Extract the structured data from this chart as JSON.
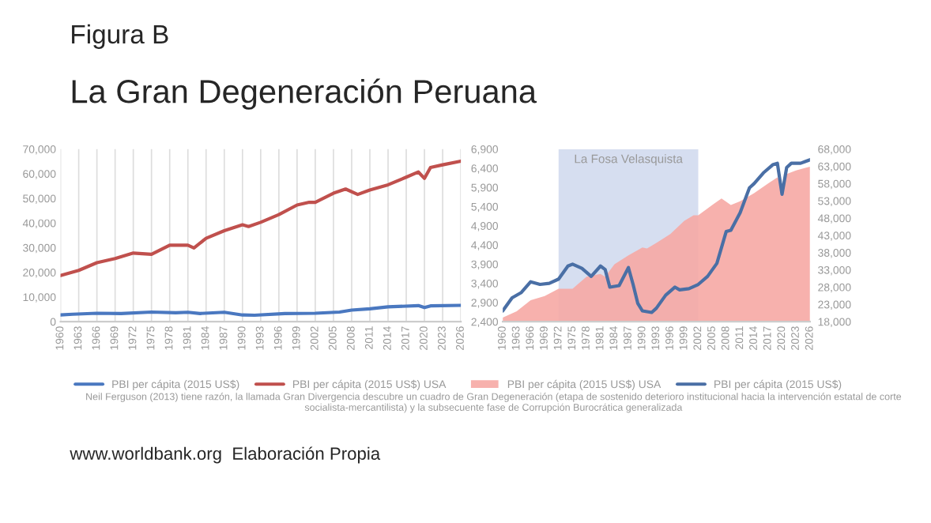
{
  "chart_data": [
    {
      "type": "line",
      "title": "Figura B",
      "subtitle": "La Gran Degeneración Peruana",
      "annotations": [
        "Neil Ferguson (2013) tiene razón, la llamada Gran Divergencia descubre un cuadro de Gran Degeneración (etapa de sostenido deterioro institucional hacia la intervención estatal de corte socialista-mercantilista) y la subsecuente fase de Corrupción Burocrática generalizada",
        "www.worldbank.org  Elaboración Propia"
      ],
      "xlim": [
        1960,
        2026
      ],
      "xticks": [
        1960,
        1963,
        1966,
        1969,
        1972,
        1975,
        1978,
        1981,
        1984,
        1987,
        1990,
        1993,
        1996,
        1999,
        2002,
        2005,
        2008,
        2011,
        2014,
        2017,
        2020,
        2023,
        2026
      ],
      "ylim": [
        0,
        70000
      ],
      "yticks": [
        {
          "value": 0,
          "label": "0"
        },
        {
          "value": 10000,
          "label": "10,000"
        },
        {
          "value": 20000,
          "label": "20,000"
        },
        {
          "value": 30000,
          "label": "30,000"
        },
        {
          "value": 40000,
          "label": "40,000"
        },
        {
          "value": 50000,
          "label": "50,000"
        },
        {
          "value": 60000,
          "label": "60,000"
        },
        {
          "value": 70000,
          "label": "70,000"
        }
      ],
      "grid": "x",
      "legend": "bottom",
      "series": [
        {
          "name": "PBI per cápita (2015 US$)",
          "color": "#4a78c0",
          "x": [
            1960,
            1962,
            1966,
            1970,
            1975,
            1979,
            1981,
            1983,
            1987,
            1990,
            1992,
            1997,
            2002,
            2006,
            2008,
            2011,
            2014,
            2019,
            2020,
            2021,
            2026
          ],
          "values": [
            2700,
            3000,
            3400,
            3300,
            3900,
            3600,
            3800,
            3300,
            3800,
            2700,
            2600,
            3300,
            3400,
            3900,
            4700,
            5200,
            6000,
            6500,
            5700,
            6400,
            6600
          ]
        },
        {
          "name": "PBI per cápita (2015 US$) USA",
          "color": "#c0504d",
          "x": [
            1960,
            1963,
            1966,
            1969,
            1972,
            1975,
            1978,
            1981,
            1982,
            1984,
            1987,
            1990,
            1991,
            1993,
            1996,
            1999,
            2001,
            2002,
            2005,
            2007,
            2009,
            2011,
            2014,
            2017,
            2019,
            2020,
            2021,
            2023,
            2026
          ],
          "values": [
            18700,
            20800,
            23900,
            25600,
            27800,
            27300,
            31000,
            31000,
            29900,
            33800,
            36900,
            39300,
            38600,
            40300,
            43400,
            47300,
            48400,
            48400,
            52100,
            53800,
            51600,
            53400,
            55500,
            58600,
            60700,
            58100,
            62500,
            63600,
            65100
          ]
        }
      ]
    },
    {
      "type": "line",
      "xlim": [
        1960,
        2026
      ],
      "xticks": [
        1960,
        1963,
        1966,
        1969,
        1972,
        1975,
        1978,
        1981,
        1984,
        1987,
        1990,
        1993,
        1996,
        1999,
        2002,
        2005,
        2008,
        2011,
        2014,
        2017,
        2020,
        2023,
        2026
      ],
      "ylim": [
        2400,
        6900
      ],
      "yticks": [
        {
          "value": 2400,
          "label": "2,400"
        },
        {
          "value": 2900,
          "label": "2,900"
        },
        {
          "value": 3400,
          "label": "3,400"
        },
        {
          "value": 3900,
          "label": "3,900"
        },
        {
          "value": 4400,
          "label": "4,400"
        },
        {
          "value": 4900,
          "label": "4,900"
        },
        {
          "value": 5400,
          "label": "5,400"
        },
        {
          "value": 5900,
          "label": "5,900"
        },
        {
          "value": 6400,
          "label": "6,400"
        },
        {
          "value": 6900,
          "label": "6,900"
        }
      ],
      "y2lim": [
        18000,
        68000
      ],
      "y2ticks": [
        {
          "value": 18000,
          "label": "18,000"
        },
        {
          "value": 23000,
          "label": "23,000"
        },
        {
          "value": 28000,
          "label": "28,000"
        },
        {
          "value": 33000,
          "label": "33,000"
        },
        {
          "value": 38000,
          "label": "38,000"
        },
        {
          "value": 43000,
          "label": "43,000"
        },
        {
          "value": 48000,
          "label": "48,000"
        },
        {
          "value": 53000,
          "label": "53,000"
        },
        {
          "value": 58000,
          "label": "58,000"
        },
        {
          "value": 63000,
          "label": "63,000"
        },
        {
          "value": 68000,
          "label": "68,000"
        }
      ],
      "legend": "bottom",
      "bands": [
        {
          "axis": "x",
          "from": 1972,
          "to": 2002,
          "label": "La Fosa Velasquista",
          "color": "#c5d0ea"
        }
      ],
      "series": [
        {
          "name": "PBI per cápita (2015 US$) USA",
          "type": "area",
          "axis": "y2",
          "color": "#f6a8a4",
          "x": [
            1960,
            1963,
            1966,
            1969,
            1972,
            1975,
            1978,
            1981,
            1982,
            1984,
            1987,
            1990,
            1991,
            1993,
            1996,
            1999,
            2001,
            2002,
            2005,
            2007,
            2009,
            2011,
            2014,
            2017,
            2019,
            2020,
            2021,
            2023,
            2026
          ],
          "values": [
            19200,
            21000,
            24200,
            25400,
            27500,
            27500,
            31000,
            31800,
            31000,
            34600,
            37200,
            39500,
            39200,
            40800,
            43400,
            47200,
            48800,
            48800,
            51800,
            53700,
            51800,
            52900,
            55200,
            58000,
            59800,
            57700,
            60800,
            61800,
            62900
          ]
        },
        {
          "name": "PBI per cápita (2015 US$)",
          "type": "line",
          "color": "#4a6fa5",
          "x": [
            1960,
            1962,
            1964,
            1966,
            1968,
            1970,
            1972,
            1974,
            1975,
            1977,
            1979,
            1981,
            1982,
            1983,
            1985,
            1987,
            1988,
            1989,
            1990,
            1992,
            1993,
            1995,
            1997,
            1998,
            2000,
            2002,
            2004,
            2006,
            2008,
            2009,
            2011,
            2013,
            2014,
            2016,
            2018,
            2019,
            2020,
            2021,
            2022,
            2024,
            2026
          ],
          "values": [
            2680,
            3020,
            3160,
            3440,
            3370,
            3400,
            3510,
            3850,
            3900,
            3790,
            3580,
            3850,
            3760,
            3300,
            3340,
            3810,
            3370,
            2880,
            2680,
            2640,
            2750,
            3090,
            3300,
            3230,
            3260,
            3370,
            3580,
            3920,
            4750,
            4780,
            5240,
            5890,
            6000,
            6280,
            6490,
            6530,
            5720,
            6420,
            6530,
            6530,
            6620
          ]
        }
      ]
    }
  ]
}
